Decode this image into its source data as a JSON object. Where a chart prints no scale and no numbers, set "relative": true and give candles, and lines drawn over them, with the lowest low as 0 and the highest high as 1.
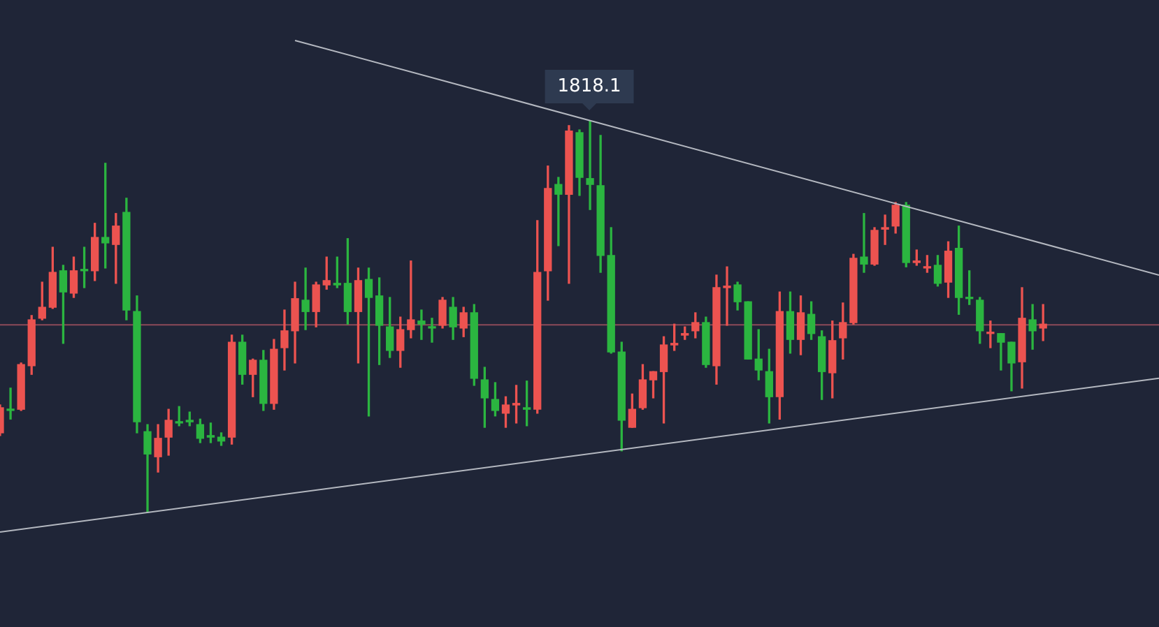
{
  "chart_data": {
    "type": "candlestick",
    "relative": true,
    "categories": [
      null,
      null,
      null,
      null,
      null,
      null,
      null,
      null,
      null,
      null,
      null,
      null,
      null,
      null,
      null,
      null,
      null,
      null,
      null,
      null,
      null,
      null,
      null,
      null,
      null,
      null,
      null,
      null,
      null,
      null,
      null,
      null,
      null,
      null,
      null,
      null,
      null,
      null,
      null,
      null,
      null,
      null,
      null,
      null,
      null,
      null,
      null,
      null,
      null,
      null,
      null,
      null,
      null,
      null,
      null,
      null,
      null,
      null,
      null,
      null,
      null,
      null,
      null,
      null,
      null,
      null,
      null,
      null,
      null,
      null,
      null,
      null,
      null,
      null,
      null,
      null,
      null,
      null,
      null,
      null,
      null,
      null,
      null,
      null,
      null,
      null,
      null,
      null,
      null,
      null,
      null,
      null,
      null,
      null,
      null,
      null,
      null,
      null,
      null,
      null,
      null,
      null,
      null,
      null,
      null,
      null,
      null,
      null,
      null,
      null,
      null
    ],
    "ohlc": [
      [
        0.203,
        0.274,
        0.196,
        0.267
      ],
      [
        0.263,
        0.317,
        0.238,
        0.26
      ],
      [
        0.263,
        0.381,
        0.26,
        0.377
      ],
      [
        0.374,
        0.502,
        0.352,
        0.491
      ],
      [
        0.495,
        0.587,
        0.491,
        0.523
      ],
      [
        0.523,
        0.676,
        0.52,
        0.612
      ],
      [
        0.616,
        0.63,
        0.431,
        0.562
      ],
      [
        0.559,
        0.651,
        0.548,
        0.616
      ],
      [
        0.619,
        0.676,
        0.573,
        0.616
      ],
      [
        0.616,
        0.737,
        0.591,
        0.701
      ],
      [
        0.701,
        0.89,
        0.623,
        0.687
      ],
      [
        0.683,
        0.762,
        0.584,
        0.73
      ],
      [
        0.765,
        0.801,
        0.491,
        0.516
      ],
      [
        0.512,
        0.552,
        0.203,
        0.231
      ],
      [
        0.206,
        0.224,
        0,
        0.149
      ],
      [
        0.142,
        0.224,
        0.103,
        0.189
      ],
      [
        0.192,
        0.263,
        0.146,
        0.235
      ],
      [
        0.231,
        0.27,
        0.221,
        0.228
      ],
      [
        0.235,
        0.256,
        0.221,
        0.231
      ],
      [
        0.224,
        0.238,
        0.178,
        0.189
      ],
      [
        0.196,
        0.228,
        0.178,
        0.192
      ],
      [
        0.192,
        0.203,
        0.171,
        0.182
      ],
      [
        0.192,
        0.452,
        0.174,
        0.434
      ],
      [
        0.434,
        0.452,
        0.327,
        0.352
      ],
      [
        0.352,
        0.391,
        0.295,
        0.388
      ],
      [
        0.388,
        0.413,
        0.26,
        0.278
      ],
      [
        0.278,
        0.441,
        0.263,
        0.416
      ],
      [
        0.42,
        0.516,
        0.363,
        0.463
      ],
      [
        0.463,
        0.587,
        0.381,
        0.545
      ],
      [
        0.541,
        0.623,
        0.466,
        0.512
      ],
      [
        0.512,
        0.587,
        0.473,
        0.58
      ],
      [
        0.58,
        0.651,
        0.569,
        0.591
      ],
      [
        0.584,
        0.651,
        0.573,
        0.58
      ],
      [
        0.584,
        0.698,
        0.48,
        0.512
      ],
      [
        0.512,
        0.623,
        0.381,
        0.591
      ],
      [
        0.594,
        0.623,
        0.246,
        0.548
      ],
      [
        0.552,
        0.598,
        0.377,
        0.477
      ],
      [
        0.473,
        0.548,
        0.395,
        0.413
      ],
      [
        0.413,
        0.498,
        0.37,
        0.466
      ],
      [
        0.466,
        0.641,
        0.445,
        0.491
      ],
      [
        0.488,
        0.516,
        0.441,
        0.48
      ],
      [
        0.473,
        0.495,
        0.434,
        0.47
      ],
      [
        0.477,
        0.548,
        0.47,
        0.541
      ],
      [
        0.523,
        0.548,
        0.441,
        0.473
      ],
      [
        0.47,
        0.523,
        0.448,
        0.509
      ],
      [
        0.509,
        0.53,
        0.324,
        0.342
      ],
      [
        0.338,
        0.37,
        0.217,
        0.292
      ],
      [
        0.288,
        0.331,
        0.246,
        0.26
      ],
      [
        0.253,
        0.295,
        0.217,
        0.274
      ],
      [
        0.274,
        0.324,
        0.228,
        0.278
      ],
      [
        0.267,
        0.335,
        0.221,
        0.263
      ],
      [
        0.263,
        0.744,
        0.253,
        0.612
      ],
      [
        0.616,
        0.883,
        0.541,
        0.826
      ],
      [
        0.836,
        0.854,
        0.68,
        0.811
      ],
      [
        0.811,
        0.986,
        0.584,
        0.972
      ],
      [
        0.968,
        0.975,
        0.808,
        0.854
      ],
      [
        0.851,
        1,
        0.772,
        0.836
      ],
      [
        0.833,
        0.961,
        0.612,
        0.655
      ],
      [
        0.655,
        0.726,
        0.406,
        0.409
      ],
      [
        0.409,
        0.434,
        0.157,
        0.235
      ],
      [
        0.217,
        0.302,
        0.217,
        0.263
      ],
      [
        0.267,
        0.377,
        0.263,
        0.338
      ],
      [
        0.338,
        0.359,
        0.292,
        0.359
      ],
      [
        0.359,
        0.448,
        0.228,
        0.427
      ],
      [
        0.427,
        0.48,
        0.413,
        0.431
      ],
      [
        0.452,
        0.473,
        0.441,
        0.456
      ],
      [
        0.463,
        0.509,
        0.445,
        0.484
      ],
      [
        0.484,
        0.498,
        0.37,
        0.377
      ],
      [
        0.374,
        0.605,
        0.327,
        0.573
      ],
      [
        0.573,
        0.626,
        0.477,
        0.577
      ],
      [
        0.58,
        0.587,
        0.516,
        0.537
      ],
      [
        0.537,
        0.537,
        0.391,
        0.391
      ],
      [
        0.391,
        0.466,
        0.338,
        0.363
      ],
      [
        0.359,
        0.416,
        0.228,
        0.295
      ],
      [
        0.295,
        0.562,
        0.238,
        0.512
      ],
      [
        0.512,
        0.562,
        0.406,
        0.441
      ],
      [
        0.441,
        0.552,
        0.402,
        0.509
      ],
      [
        0.505,
        0.537,
        0.441,
        0.456
      ],
      [
        0.448,
        0.463,
        0.288,
        0.359
      ],
      [
        0.356,
        0.488,
        0.292,
        0.438
      ],
      [
        0.445,
        0.534,
        0.391,
        0.484
      ],
      [
        0.484,
        0.658,
        0.48,
        0.648
      ],
      [
        0.651,
        0.762,
        0.612,
        0.633
      ],
      [
        0.633,
        0.726,
        0.63,
        0.719
      ],
      [
        0.722,
        0.758,
        0.683,
        0.726
      ],
      [
        0.73,
        0.79,
        0.712,
        0.783
      ],
      [
        0.783,
        0.79,
        0.626,
        0.637
      ],
      [
        0.637,
        0.669,
        0.63,
        0.641
      ],
      [
        0.623,
        0.655,
        0.612,
        0.626
      ],
      [
        0.63,
        0.655,
        0.577,
        0.584
      ],
      [
        0.587,
        0.69,
        0.548,
        0.666
      ],
      [
        0.673,
        0.73,
        0.505,
        0.548
      ],
      [
        0.548,
        0.616,
        0.53,
        0.545
      ],
      [
        0.541,
        0.548,
        0.431,
        0.463
      ],
      [
        0.456,
        0.488,
        0.42,
        0.459
      ],
      [
        0.456,
        0.456,
        0.363,
        0.434
      ],
      [
        0.434,
        0.434,
        0.31,
        0.381
      ],
      [
        0.384,
        0.573,
        0.317,
        0.495
      ],
      [
        0.491,
        0.53,
        0.416,
        0.463
      ],
      [
        0.47,
        0.53,
        0.438,
        0.48
      ],
      null,
      null,
      null,
      null,
      null,
      null,
      null,
      null,
      null,
      null,
      null
    ],
    "colors": [
      "#ec5350",
      "#2bb540",
      "#ec5350",
      "#ec5350",
      "#ec5350",
      "#ec5350",
      "#2bb540",
      "#ec5350",
      "#2bb540",
      "#ec5350",
      "#2bb540",
      "#ec5350",
      "#2bb540",
      "#2bb540",
      "#2bb540",
      "#ec5350",
      "#ec5350",
      "#2bb540",
      "#2bb540",
      "#2bb540",
      "#2bb540",
      "#2bb540",
      "#ec5350",
      "#2bb540",
      "#ec5350",
      "#2bb540",
      "#ec5350",
      "#ec5350",
      "#ec5350",
      "#2bb540",
      "#ec5350",
      "#ec5350",
      "#2bb540",
      "#2bb540",
      "#ec5350",
      "#2bb540",
      "#2bb540",
      "#2bb540",
      "#ec5350",
      "#ec5350",
      "#2bb540",
      "#2bb540",
      "#ec5350",
      "#2bb540",
      "#ec5350",
      "#2bb540",
      "#2bb540",
      "#2bb540",
      "#ec5350",
      "#ec5350",
      "#2bb540",
      "#ec5350",
      "#ec5350",
      "#2bb540",
      "#ec5350",
      "#2bb540",
      "#2bb540",
      "#2bb540",
      "#2bb540",
      "#2bb540",
      "#ec5350",
      "#ec5350",
      "#ec5350",
      "#ec5350",
      "#ec5350",
      "#ec5350",
      "#ec5350",
      "#2bb540",
      "#ec5350",
      "#ec5350",
      "#2bb540",
      "#2bb540",
      "#2bb540",
      "#2bb540",
      "#ec5350",
      "#2bb540",
      "#ec5350",
      "#2bb540",
      "#2bb540",
      "#ec5350",
      "#ec5350",
      "#ec5350",
      "#2bb540",
      "#ec5350",
      "#ec5350",
      "#ec5350",
      "#2bb540",
      "#ec5350",
      "#ec5350",
      "#2bb540",
      "#ec5350",
      "#2bb540",
      "#2bb540",
      "#2bb540",
      "#ec5350",
      "#2bb540",
      "#2bb540",
      "#ec5350",
      "#2bb540",
      "#ec5350",
      null,
      null,
      null,
      null,
      null,
      null,
      null,
      null,
      null,
      null,
      null
    ],
    "series": [
      {
        "type": "line",
        "color": "#b4b8c0",
        "values": [
          null,
          null,
          null,
          null,
          null,
          null,
          null,
          null,
          null,
          null,
          null,
          null,
          null,
          null,
          null,
          null,
          null,
          null,
          null,
          null,
          null,
          null,
          null,
          null,
          null,
          null,
          null,
          null,
          1.203,
          null,
          null,
          null,
          null,
          null,
          null,
          null,
          null,
          null,
          null,
          null,
          null,
          null,
          null,
          null,
          null,
          null,
          null,
          null,
          null,
          null,
          null,
          null,
          null,
          null,
          null,
          null,
          null,
          null,
          null,
          null,
          null,
          null,
          null,
          null,
          null,
          null,
          null,
          null,
          null,
          null,
          null,
          null,
          null,
          null,
          null,
          null,
          null,
          null,
          null,
          null,
          null,
          null,
          null,
          null,
          null,
          null,
          null,
          null,
          null,
          null,
          null,
          null,
          null,
          null,
          null,
          null,
          null,
          null,
          null,
          null,
          null,
          null,
          null,
          null,
          null,
          null,
          null,
          null,
          null,
          null,
          0.605
        ]
      },
      {
        "type": "line",
        "color": "#b4b8c0",
        "values": [
          -0.05,
          null,
          null,
          null,
          null,
          null,
          null,
          null,
          null,
          null,
          null,
          null,
          null,
          null,
          null,
          null,
          null,
          null,
          null,
          null,
          null,
          null,
          null,
          null,
          null,
          null,
          null,
          null,
          null,
          null,
          null,
          null,
          null,
          null,
          null,
          null,
          null,
          null,
          null,
          null,
          null,
          null,
          null,
          null,
          null,
          null,
          null,
          null,
          null,
          null,
          null,
          null,
          null,
          null,
          null,
          null,
          null,
          null,
          null,
          null,
          null,
          null,
          null,
          null,
          null,
          null,
          null,
          null,
          null,
          null,
          null,
          null,
          null,
          null,
          null,
          null,
          null,
          null,
          null,
          null,
          null,
          null,
          null,
          null,
          null,
          null,
          null,
          null,
          null,
          null,
          null,
          null,
          null,
          null,
          null,
          null,
          null,
          null,
          null,
          null,
          null,
          null,
          null,
          null,
          null,
          null,
          null,
          null,
          null,
          null,
          0.342
        ]
      }
    ],
    "ref_lines": [
      {
        "axis": "y",
        "value": 0.48,
        "color": "#8c4a58"
      }
    ],
    "annotations": [
      {
        "text": "1818.1",
        "y": 1
      }
    ]
  }
}
